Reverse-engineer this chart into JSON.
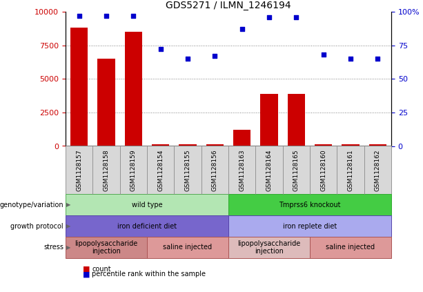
{
  "title": "GDS5271 / ILMN_1246194",
  "samples": [
    "GSM1128157",
    "GSM1128158",
    "GSM1128159",
    "GSM1128154",
    "GSM1128155",
    "GSM1128156",
    "GSM1128163",
    "GSM1128164",
    "GSM1128165",
    "GSM1128160",
    "GSM1128161",
    "GSM1128162"
  ],
  "counts": [
    8800,
    6500,
    8500,
    150,
    150,
    150,
    1200,
    3900,
    3900,
    150,
    150,
    150
  ],
  "percentiles": [
    97,
    97,
    97,
    72,
    65,
    67,
    87,
    96,
    96,
    68,
    65,
    65
  ],
  "bar_color": "#cc0000",
  "dot_color": "#0000cc",
  "ylim_left": [
    0,
    10000
  ],
  "ylim_right": [
    0,
    100
  ],
  "yticks_left": [
    0,
    2500,
    5000,
    7500,
    10000
  ],
  "yticks_right": [
    0,
    25,
    50,
    75,
    100
  ],
  "yticklabels_right": [
    "0",
    "25",
    "50",
    "75",
    "100%"
  ],
  "grid_values": [
    2500,
    5000,
    7500
  ],
  "genotype_blocks": [
    {
      "text": "wild type",
      "start": 0,
      "end": 5,
      "color": "#b3e6b3",
      "edgecolor": "#55aa55"
    },
    {
      "text": "Tmprss6 knockout",
      "start": 6,
      "end": 11,
      "color": "#44cc44",
      "edgecolor": "#33aa33"
    }
  ],
  "growth_blocks": [
    {
      "text": "iron deficient diet",
      "start": 0,
      "end": 5,
      "color": "#7766cc",
      "edgecolor": "#5544aa"
    },
    {
      "text": "iron replete diet",
      "start": 6,
      "end": 11,
      "color": "#aaaaee",
      "edgecolor": "#5544aa"
    }
  ],
  "stress_blocks": [
    {
      "text": "lipopolysaccharide\ninjection",
      "start": 0,
      "end": 2,
      "color": "#cc8888",
      "edgecolor": "#aa5555"
    },
    {
      "text": "saline injected",
      "start": 3,
      "end": 5,
      "color": "#dd9999",
      "edgecolor": "#aa5555"
    },
    {
      "text": "lipopolysaccharide\ninjection",
      "start": 6,
      "end": 8,
      "color": "#ddbbbb",
      "edgecolor": "#aa5555"
    },
    {
      "text": "saline injected",
      "start": 9,
      "end": 11,
      "color": "#dd9999",
      "edgecolor": "#aa5555"
    }
  ],
  "row_labels": [
    "genotype/variation",
    "growth protocol",
    "stress"
  ],
  "legend_count_color": "#cc0000",
  "legend_dot_color": "#0000cc"
}
